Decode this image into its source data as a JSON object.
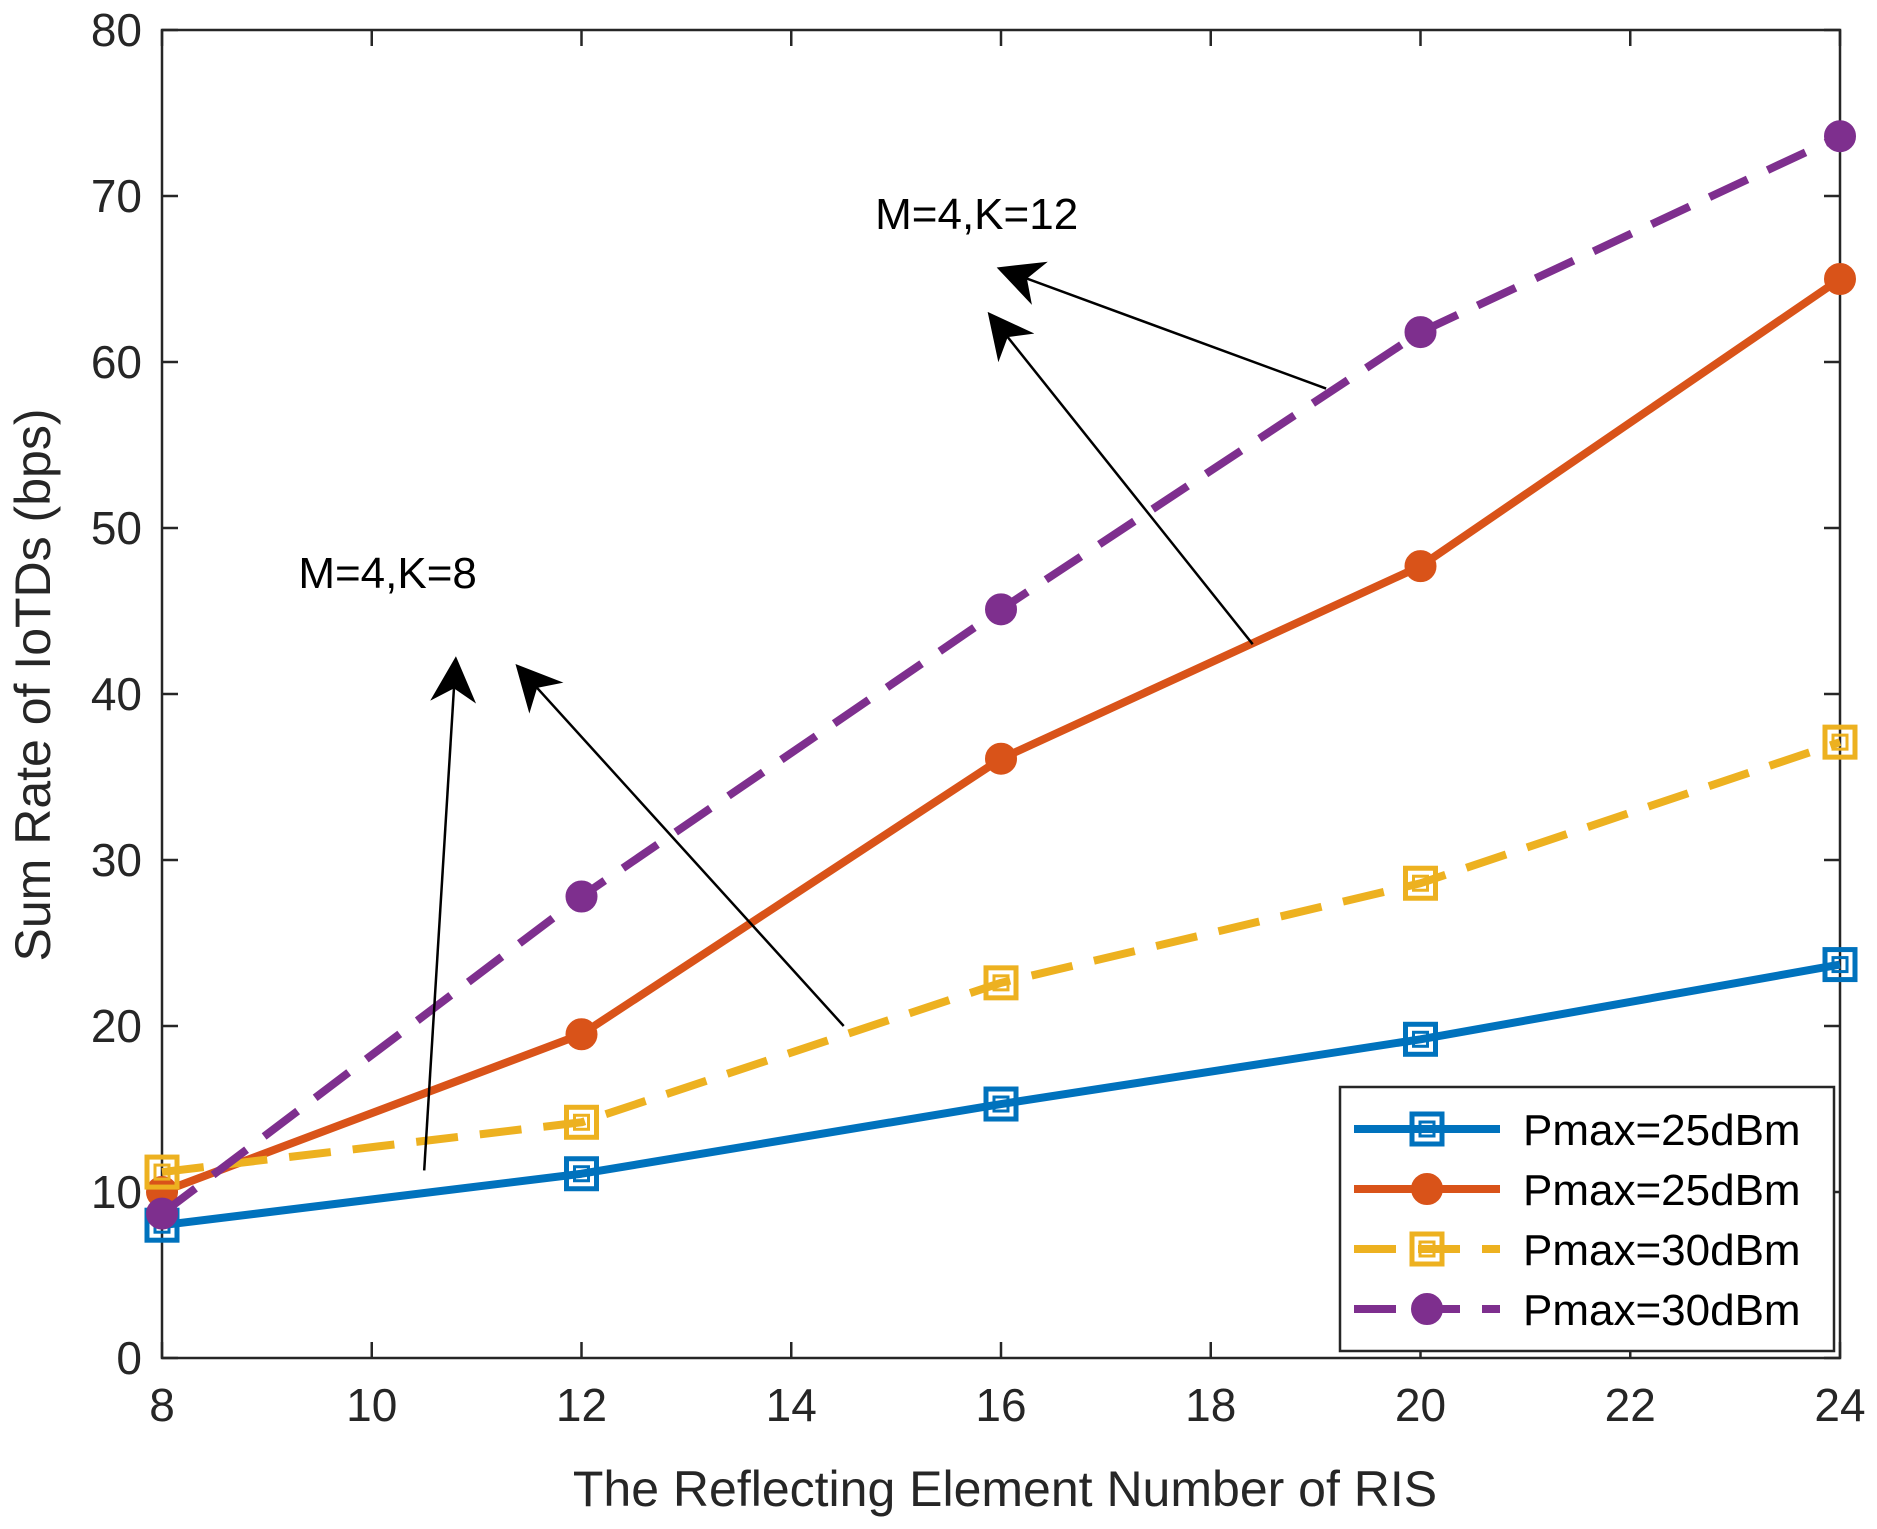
{
  "chart_data": {
    "type": "line",
    "title": "",
    "xlabel": "The Reflecting Element Number of RIS",
    "ylabel": "Sum Rate of IoTDs (bps)",
    "xlim": [
      8,
      24
    ],
    "ylim": [
      0,
      80
    ],
    "x_ticks": [
      8,
      10,
      12,
      14,
      16,
      18,
      20,
      22,
      24
    ],
    "y_ticks": [
      0,
      10,
      20,
      30,
      40,
      50,
      60,
      70,
      80
    ],
    "grid": false,
    "legend_position": "bottom-right",
    "series": [
      {
        "name": "Pmax=25dBm",
        "color": "#0072BD",
        "line": "solid",
        "marker": "square",
        "x": [
          8,
          12,
          16,
          20,
          24
        ],
        "y": [
          8.0,
          11.1,
          15.3,
          19.2,
          23.7
        ]
      },
      {
        "name": "Pmax=25dBm",
        "color": "#D95319",
        "line": "solid",
        "marker": "circle",
        "x": [
          8,
          12,
          16,
          20,
          24
        ],
        "y": [
          10.0,
          19.5,
          36.1,
          47.7,
          65.0
        ]
      },
      {
        "name": "Pmax=30dBm",
        "color": "#EDB120",
        "line": "dashed",
        "marker": "square",
        "x": [
          8,
          12,
          16,
          20,
          24
        ],
        "y": [
          11.2,
          14.2,
          22.6,
          28.6,
          37.1
        ]
      },
      {
        "name": "Pmax=30dBm",
        "color": "#7E2F8E",
        "line": "dashed",
        "marker": "circle",
        "x": [
          8,
          12,
          16,
          20,
          24
        ],
        "y": [
          8.7,
          27.8,
          45.1,
          61.8,
          73.6
        ]
      }
    ],
    "annotations": [
      {
        "text": "M=4,K=8",
        "at": [
          9.3,
          46.4
        ],
        "arrows": [
          {
            "from": [
              10.5,
              11.3
            ],
            "to": [
              10.8,
              42.0
            ]
          },
          {
            "from": [
              14.5,
              20.0
            ],
            "to": [
              11.4,
              41.6
            ]
          }
        ]
      },
      {
        "text": "M=4,K=12",
        "at": [
          14.8,
          68.0
        ],
        "arrows": [
          {
            "from": [
              18.4,
              43.0
            ],
            "to": [
              15.9,
              62.8
            ]
          },
          {
            "from": [
              19.1,
              58.4
            ],
            "to": [
              16.0,
              65.6
            ]
          }
        ]
      }
    ]
  }
}
